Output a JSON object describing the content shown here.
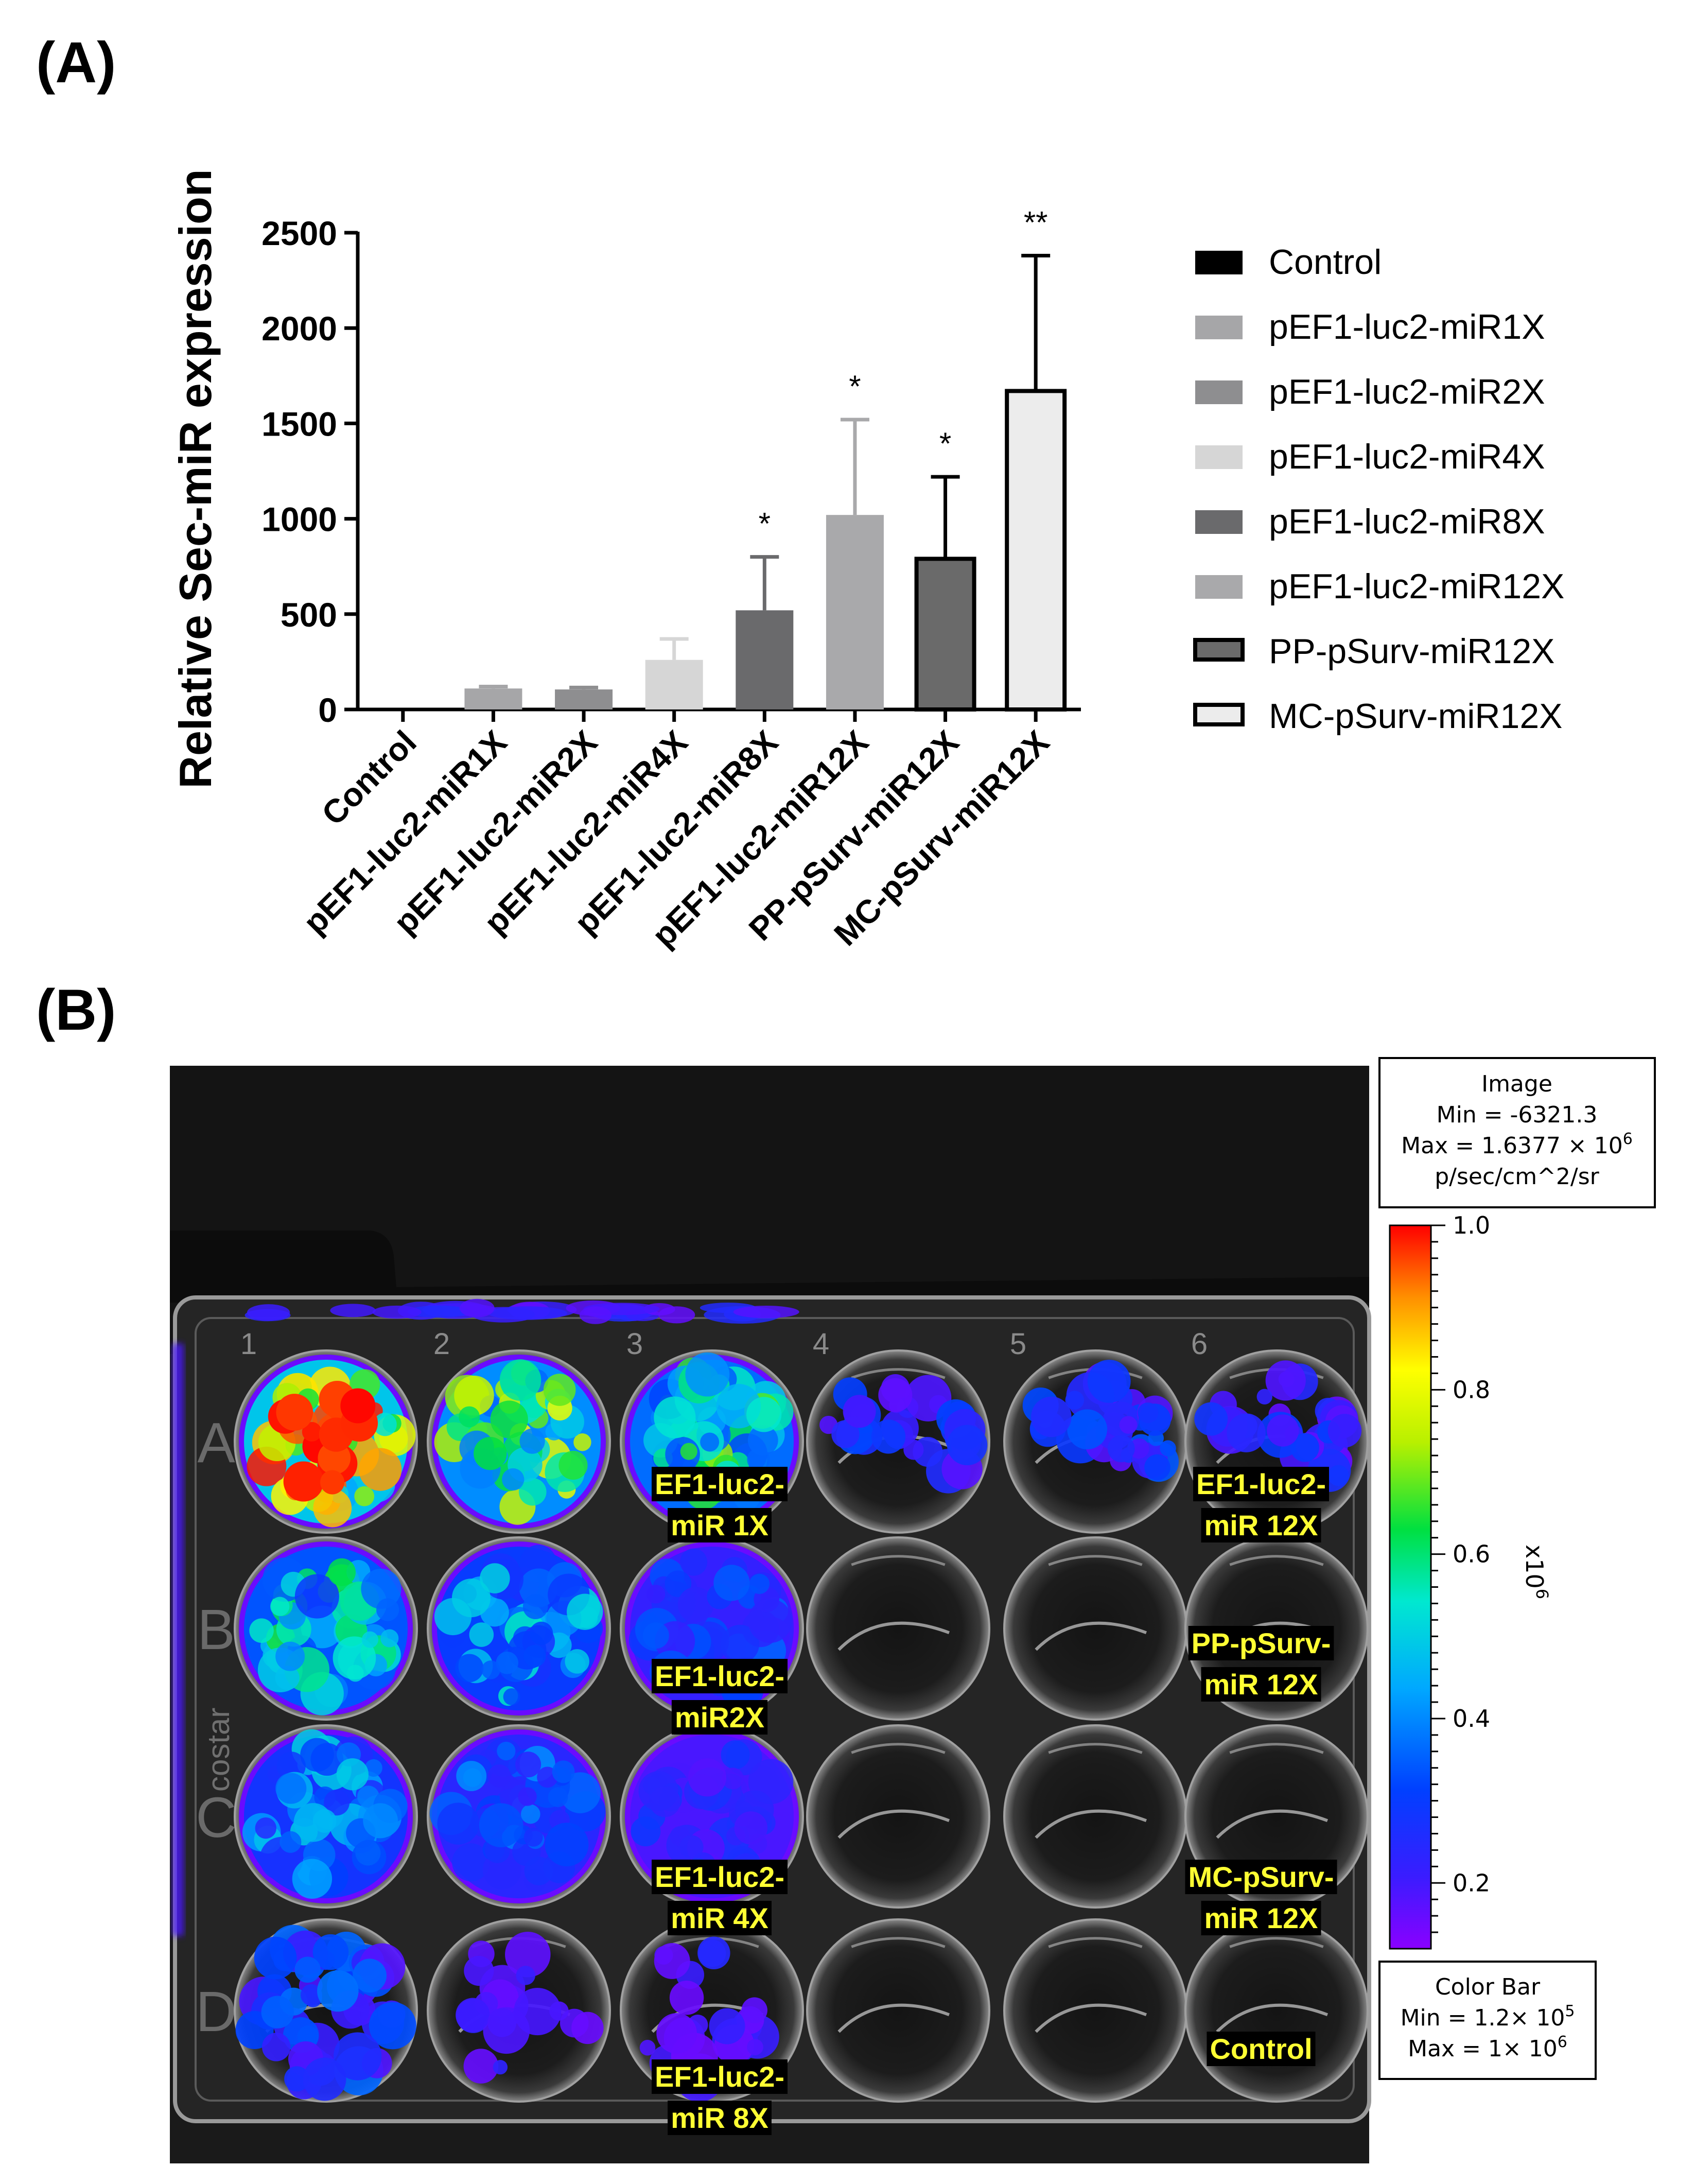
{
  "panel_a": {
    "label": "(A)"
  },
  "panel_b": {
    "label": "(B)"
  },
  "chart_data": {
    "type": "bar",
    "title": "",
    "xlabel": "",
    "ylabel": "Relative Sec-miR expression",
    "ylim": [
      0,
      2500
    ],
    "yticks": [
      0,
      500,
      1000,
      1500,
      2000,
      2500
    ],
    "grid": false,
    "legend_position": "right",
    "categories": [
      "Control",
      "pEF1-luc2-miR1X",
      "pEF1-luc2-miR2X",
      "pEF1-luc2-miR4X",
      "pEF1-luc2-miR8X",
      "pEF1-luc2-miR12X",
      "PP-pSurv-miR12X",
      "MC-pSurv-miR12X"
    ],
    "values": [
      0,
      110,
      105,
      260,
      520,
      1020,
      790,
      1670
    ],
    "errors": [
      0,
      10,
      10,
      110,
      280,
      500,
      430,
      710
    ],
    "significance": [
      "",
      "",
      "",
      "",
      "*",
      "*",
      "*",
      "**"
    ],
    "colors": [
      "#000000",
      "#a6a6a8",
      "#8e8e90",
      "#d6d6d6",
      "#6a6a6c",
      "#a9a9ab",
      "#6a6a6a",
      "#ececec"
    ],
    "outlined": [
      false,
      false,
      false,
      false,
      false,
      false,
      true,
      true
    ],
    "legend": [
      "Control",
      "pEF1-luc2-miR1X",
      "pEF1-luc2-miR2X",
      "pEF1-luc2-miR4X",
      "pEF1-luc2-miR8X",
      "pEF1-luc2-miR12X",
      "PP-pSurv-miR12X",
      "MC-pSurv-miR12X"
    ]
  },
  "imaging": {
    "column_numbers": [
      "1",
      "2",
      "3",
      "4",
      "5",
      "6"
    ],
    "row_letters": [
      "A",
      "B",
      "C",
      "D"
    ],
    "plate_brand": "costar",
    "left_labels": [
      {
        "line1": "EF1-luc2-",
        "line2": "miR 1X"
      },
      {
        "line1": "EF1-luc2-",
        "line2": "miR2X"
      },
      {
        "line1": "EF1-luc2-",
        "line2": "miR 4X"
      },
      {
        "line1": "EF1-luc2-",
        "line2": "miR 8X"
      }
    ],
    "right_labels": [
      {
        "line1": "EF1-luc2-",
        "line2": "miR 12X"
      },
      {
        "line1": "PP-pSurv-",
        "line2": "miR 12X"
      },
      {
        "line1": "MC-pSurv-",
        "line2": "miR 12X"
      },
      {
        "line1": "Control",
        "line2": ""
      }
    ],
    "well_intensity": [
      [
        0.92,
        0.72,
        0.62,
        0.18,
        0.2,
        0.16
      ],
      [
        0.55,
        0.45,
        0.25,
        0.0,
        0.0,
        0.0
      ],
      [
        0.4,
        0.3,
        0.18,
        0.0,
        0.0,
        0.0
      ],
      [
        0.22,
        0.1,
        0.12,
        0.0,
        0.0,
        0.0
      ]
    ],
    "well_coverage": [
      [
        1.0,
        1.0,
        1.0,
        0.55,
        0.55,
        0.5
      ],
      [
        1.0,
        1.0,
        1.0,
        0.0,
        0.0,
        0.0
      ],
      [
        1.0,
        1.0,
        0.95,
        0.0,
        0.0,
        0.0
      ],
      [
        0.8,
        0.3,
        0.35,
        0.0,
        0.0,
        0.0
      ]
    ],
    "image_box": {
      "title": "Image",
      "min": "Min = -6321.3",
      "max_prefix": "Max = 1.6377 × 10",
      "max_exp": "6",
      "units": "p/sec/cm^2/sr"
    },
    "color_scale": {
      "ticks": [
        "1.0",
        "0.8",
        "0.6",
        "0.4",
        "0.2"
      ],
      "tick_values": [
        1.0,
        0.8,
        0.6,
        0.4,
        0.2
      ],
      "range": [
        0.12,
        1.0
      ],
      "multiplier_base": "x10",
      "multiplier_exp": "6"
    },
    "color_bar_box": {
      "title": "Color Bar",
      "min_prefix": "Min = 1.2× 10",
      "min_exp": "5",
      "max_prefix": "Max = 1× 10",
      "max_exp": "6"
    }
  }
}
